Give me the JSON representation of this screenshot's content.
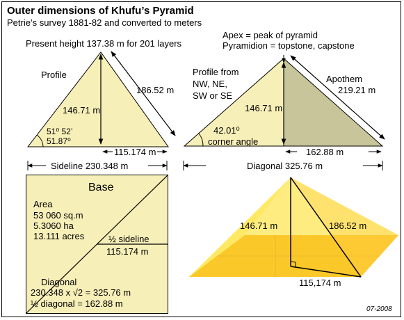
{
  "header": {
    "title": "Outer dimensions of Khufu’s Pyramid",
    "subtitle": "Petrie’s survey 1881-82 and converted to meters"
  },
  "profile": {
    "present_height": "Present height 137.38 m for 201 layers",
    "label": "Profile",
    "height": "146.71 m",
    "slant": "186.52 m",
    "angle_dms": "51⁰ 52’",
    "angle_deg": "51.87⁰",
    "half_base": "115.174 m",
    "sideline": "Sideline 230.348 m"
  },
  "diagonal_profile": {
    "apex_note": "Apex = peak of pyramid",
    "pyramidion_note": "Pyramidion = topstone, capstone",
    "label_lines": [
      "Profile from",
      "NW, NE,",
      "SW or SE"
    ],
    "height": "146.71 m",
    "apothem_label": "Apothem",
    "apothem_value": "219.21 m",
    "angle": "42.01⁰",
    "angle_label": "corner angle",
    "half_diagonal": "162.88 m",
    "diagonal": "Diagonal 325.76 m"
  },
  "base": {
    "title": "Base",
    "area_label": "Area",
    "area_lines": [
      "53 060 sq.m",
      "5.3060 ha",
      "13.111 acres"
    ],
    "half_sideline_label": "½ sideline",
    "half_sideline_value": "115.174 m",
    "diagonal_label": "Diagonal",
    "diagonal_formula": "230.348 x √2 = 325.76 m",
    "half_diagonal": "½ diagonal = 162.88 m"
  },
  "pyramid_3d": {
    "height": "146.71 m",
    "slant": "186.52 m",
    "half_base": "115,174 m"
  },
  "footer": {
    "date_code": "07-2008"
  },
  "colors": {
    "profile_fill": "#f7efb8",
    "diag_fill": "#c8c59a",
    "pyr_face_light": "#fff59a",
    "pyr_face_mid": "#ffe76a",
    "pyr_base": "#f7a800"
  }
}
